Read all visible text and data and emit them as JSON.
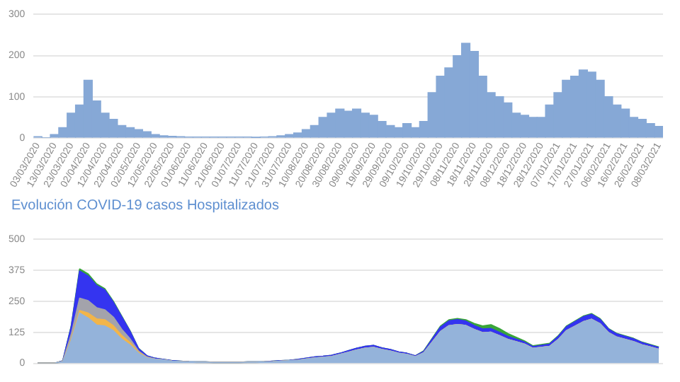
{
  "chart_data": [
    {
      "type": "bar",
      "categories": [
        "03/03/2020",
        null,
        "13/03/2020",
        null,
        "23/03/2020",
        null,
        "02/04/2020",
        null,
        "12/04/2020",
        null,
        "22/04/2020",
        null,
        "02/05/2020",
        null,
        "12/05/2020",
        null,
        "22/05/2020",
        null,
        "01/06/2020",
        null,
        "11/06/2020",
        null,
        "21/06/2020",
        null,
        "01/07/2020",
        null,
        "11/07/2020",
        null,
        "21/07/2020",
        null,
        "31/07/2020",
        null,
        "10/08/2020",
        null,
        "20/08/2020",
        null,
        "30/08/2020",
        null,
        "09/09/2020",
        null,
        "19/09/2020",
        null,
        "29/09/2020",
        null,
        "09/10/2020",
        null,
        "19/10/2020",
        null,
        "29/10/2020",
        null,
        "08/11/2020",
        null,
        "18/11/2020",
        null,
        "28/11/2020",
        null,
        "08/12/2020",
        null,
        "18/12/2020",
        null,
        "28/12/2020",
        null,
        "07/01/2021",
        null,
        "17/01/2021",
        null,
        "27/01/2021",
        null,
        "06/02/2021",
        null,
        "16/02/2021",
        null,
        "26/02/2021",
        null,
        "08/03/2021"
      ],
      "values": [
        3,
        0,
        8,
        25,
        60,
        80,
        140,
        90,
        60,
        45,
        30,
        25,
        20,
        15,
        8,
        5,
        4,
        3,
        2,
        2,
        2,
        2,
        2,
        2,
        2,
        2,
        1,
        2,
        3,
        5,
        8,
        12,
        20,
        30,
        50,
        60,
        70,
        65,
        70,
        60,
        55,
        40,
        30,
        25,
        35,
        25,
        40,
        110,
        150,
        170,
        200,
        230,
        210,
        150,
        110,
        100,
        85,
        60,
        55,
        50,
        50,
        80,
        110,
        140,
        150,
        165,
        160,
        140,
        100,
        80,
        70,
        50,
        45,
        35,
        28
      ],
      "color": "#86a8d6",
      "ylim": [
        0,
        300
      ],
      "yticks": [
        0,
        100,
        200,
        300
      ],
      "grid": "y",
      "legend": false
    },
    {
      "type": "area",
      "title": "Evolución COVID-19 casos  Hospitalizados",
      "stacked": true,
      "marker": "none",
      "categories": [
        null,
        null,
        null,
        null,
        null,
        null,
        null,
        null,
        null,
        null,
        null,
        null,
        null,
        null,
        null,
        null,
        null,
        null,
        null,
        null,
        null,
        null,
        null,
        null,
        null,
        null,
        null,
        null,
        null,
        null,
        null,
        null,
        null,
        null,
        null,
        null,
        null,
        null,
        null,
        null,
        null,
        null,
        null,
        null,
        null,
        null,
        null,
        null,
        null,
        null,
        null,
        null,
        null,
        null,
        null,
        null,
        null,
        null,
        null,
        null,
        null,
        null,
        null,
        null,
        null,
        null,
        null,
        null,
        null,
        null,
        null,
        null,
        null,
        null,
        null
      ],
      "series": [
        {
          "color": "#94b3da",
          "values": [
            0,
            0,
            0,
            6,
            92,
            202,
            182,
            154,
            150,
            131,
            97,
            73,
            40,
            22,
            16,
            13,
            8,
            7,
            5,
            4,
            4,
            3,
            3,
            3,
            3,
            4,
            4,
            5,
            6,
            8,
            10,
            12,
            17,
            21,
            24,
            27,
            35,
            44,
            53,
            60,
            64,
            55,
            49,
            40,
            35,
            26,
            42,
            85,
            128,
            151,
            156,
            152,
            136,
            123,
            125,
            111,
            96,
            87,
            77,
            60,
            64,
            68,
            95,
            131,
            149,
            167,
            177,
            159,
            123,
            105,
            96,
            87,
            74,
            65,
            56
          ]
        },
        {
          "color": "#f2b54a",
          "values": [
            0,
            0,
            0,
            0,
            5,
            10,
            20,
            25,
            25,
            20,
            15,
            10,
            4,
            1,
            0,
            0,
            0,
            0,
            0,
            0,
            0,
            0,
            0,
            0,
            0,
            0,
            0,
            0,
            0,
            0,
            0,
            0,
            0,
            0,
            0,
            0,
            0,
            0,
            0,
            0,
            0,
            0,
            0,
            0,
            0,
            0,
            0,
            0,
            0,
            0,
            0,
            0,
            0,
            0,
            0,
            0,
            0,
            0,
            0,
            0,
            0,
            0,
            0,
            0,
            0,
            0,
            0,
            0,
            0,
            0,
            0,
            0,
            0,
            0,
            0
          ]
        },
        {
          "color": "#a3a3ab",
          "values": [
            0,
            0,
            0,
            2,
            20,
            50,
            50,
            45,
            40,
            35,
            25,
            15,
            5,
            2,
            1,
            0,
            0,
            0,
            0,
            0,
            0,
            0,
            0,
            0,
            0,
            0,
            0,
            0,
            0,
            0,
            0,
            0,
            0,
            0,
            0,
            0,
            0,
            0,
            0,
            0,
            0,
            0,
            0,
            0,
            0,
            0,
            0,
            0,
            0,
            0,
            0,
            0,
            0,
            0,
            0,
            0,
            0,
            0,
            0,
            0,
            0,
            0,
            0,
            0,
            0,
            0,
            0,
            0,
            0,
            0,
            0,
            0,
            0,
            0,
            0
          ]
        },
        {
          "color": "#3434f0",
          "values": [
            0,
            0,
            0,
            2,
            30,
            110,
            100,
            90,
            80,
            60,
            50,
            30,
            10,
            5,
            3,
            2,
            2,
            1,
            1,
            1,
            1,
            1,
            1,
            1,
            1,
            1,
            1,
            1,
            2,
            2,
            2,
            3,
            3,
            4,
            4,
            5,
            5,
            6,
            7,
            8,
            8,
            7,
            6,
            5,
            5,
            4,
            6,
            12,
            18,
            20,
            20,
            18,
            16,
            15,
            15,
            14,
            12,
            10,
            8,
            7,
            8,
            9,
            12,
            16,
            18,
            20,
            20,
            18,
            15,
            13,
            12,
            11,
            9,
            8,
            7
          ]
        },
        {
          "color": "#3aa53a",
          "values": [
            0,
            0,
            0,
            0,
            3,
            8,
            8,
            6,
            5,
            4,
            3,
            2,
            1,
            0,
            0,
            0,
            0,
            0,
            0,
            0,
            0,
            0,
            0,
            0,
            0,
            0,
            0,
            0,
            0,
            0,
            0,
            0,
            0,
            0,
            0,
            0,
            0,
            0,
            0,
            0,
            0,
            0,
            0,
            0,
            0,
            0,
            2,
            3,
            4,
            4,
            4,
            5,
            8,
            12,
            15,
            15,
            12,
            8,
            5,
            3,
            3,
            3,
            3,
            3,
            3,
            3,
            3,
            3,
            2,
            2,
            2,
            2,
            2,
            2,
            2
          ]
        }
      ],
      "ylim": [
        0,
        500
      ],
      "yticks": [
        0,
        125,
        250,
        375,
        500
      ],
      "grid": "y",
      "tick_labels": "y",
      "legend": false
    }
  ]
}
